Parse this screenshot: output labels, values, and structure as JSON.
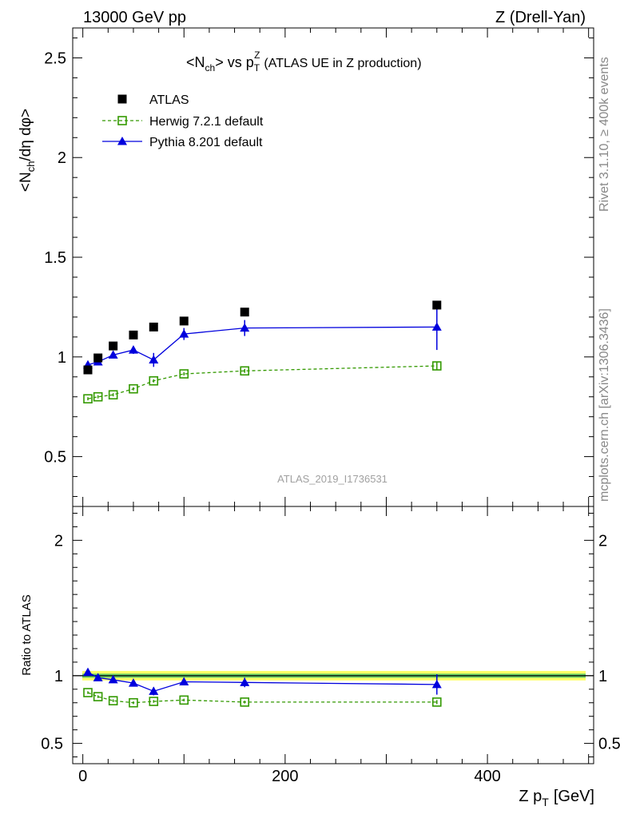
{
  "header": {
    "left": "13000 GeV pp",
    "right": "Z (Drell-Yan)"
  },
  "side_labels": {
    "rivet": "Rivet 3.1.10, ≥ 400k events",
    "mcplots": "mcplots.cern.ch [arXiv:1306.3436]"
  },
  "watermark": "ATLAS_2019_I1736531",
  "chart_data": [
    {
      "type": "scatter",
      "title": "<Nch> vs pTZ (ATLAS UE in Z production)",
      "title_parts": {
        "a": "<N",
        "a_sub": "ch",
        "b": "> vs p",
        "b_sub": "T",
        "b_sup": "Z",
        "c": "(ATLAS UE in Z production)"
      },
      "ylabel": "<Nch/dη dφ>",
      "ylabel_parts": {
        "a": "<N",
        "a_sub": "ch",
        "b": "/dη dφ>"
      },
      "xlim": [
        -10,
        505
      ],
      "ylim": [
        0.25,
        2.65
      ],
      "y_ticks": [
        0.5,
        1,
        1.5,
        2,
        2.5
      ],
      "y_tick_labels": [
        "0.5",
        "1",
        "1.5",
        "2",
        "2.5"
      ],
      "x": [
        5,
        15,
        30,
        50,
        70,
        100,
        160,
        350
      ],
      "series": [
        {
          "name": "ATLAS",
          "style": "square-filled",
          "color": "#000000",
          "values": [
            0.935,
            0.995,
            1.055,
            1.11,
            1.15,
            1.18,
            1.225,
            1.26
          ],
          "errors": [
            0.005,
            0.005,
            0.005,
            0.005,
            0.005,
            0.005,
            0.005,
            0.005
          ]
        },
        {
          "name": "Herwig 7.2.1 default",
          "style": "square-open-dashed",
          "color": "#339900",
          "values": [
            0.79,
            0.8,
            0.81,
            0.84,
            0.88,
            0.915,
            0.93,
            0.955
          ],
          "errors": [
            0.008,
            0.008,
            0.008,
            0.008,
            0.008,
            0.008,
            0.01,
            0.02
          ]
        },
        {
          "name": "Pythia 8.201 default",
          "style": "triangle-filled-solid",
          "color": "#0000dd",
          "values": [
            0.96,
            0.975,
            1.01,
            1.035,
            0.985,
            1.115,
            1.145,
            1.15
          ],
          "errors": [
            0.01,
            0.01,
            0.015,
            0.02,
            0.035,
            0.03,
            0.04,
            0.115
          ]
        }
      ],
      "legend_placement": "top-left"
    },
    {
      "type": "scatter",
      "ylabel": "Ratio to ATLAS",
      "xlabel": "Z pT [GeV]",
      "xlabel_parts": {
        "a": "Z p",
        "a_sub": "T",
        "b": "[GeV]"
      },
      "xlim": [
        -10,
        505
      ],
      "ylim": [
        0.35,
        2.25
      ],
      "y_ticks": [
        0.5,
        1,
        2
      ],
      "y_tick_labels": [
        "0.5",
        "1",
        "2"
      ],
      "x_ticks": [
        0,
        200,
        400
      ],
      "x_tick_labels": [
        "0",
        "200",
        "400"
      ],
      "reference_band": {
        "inner": [
          0.985,
          1.015
        ],
        "outer": [
          0.965,
          1.035
        ],
        "inner_color": "#66cc66",
        "outer_color": "#ffff66"
      },
      "x": [
        5,
        15,
        30,
        50,
        70,
        100,
        160,
        350
      ],
      "series": [
        {
          "name": "Herwig 7.2.1 default",
          "style": "square-open-dashed",
          "color": "#339900",
          "values": [
            0.875,
            0.845,
            0.815,
            0.8,
            0.81,
            0.82,
            0.805,
            0.805
          ],
          "errors": [
            0.01,
            0.01,
            0.01,
            0.01,
            0.01,
            0.01,
            0.01,
            0.015
          ]
        },
        {
          "name": "Pythia 8.201 default",
          "style": "triangle-filled-solid",
          "color": "#0000dd",
          "values": [
            1.025,
            0.985,
            0.97,
            0.945,
            0.885,
            0.955,
            0.95,
            0.935
          ],
          "errors": [
            0.01,
            0.01,
            0.015,
            0.02,
            0.03,
            0.025,
            0.035,
            0.075
          ]
        }
      ]
    }
  ]
}
